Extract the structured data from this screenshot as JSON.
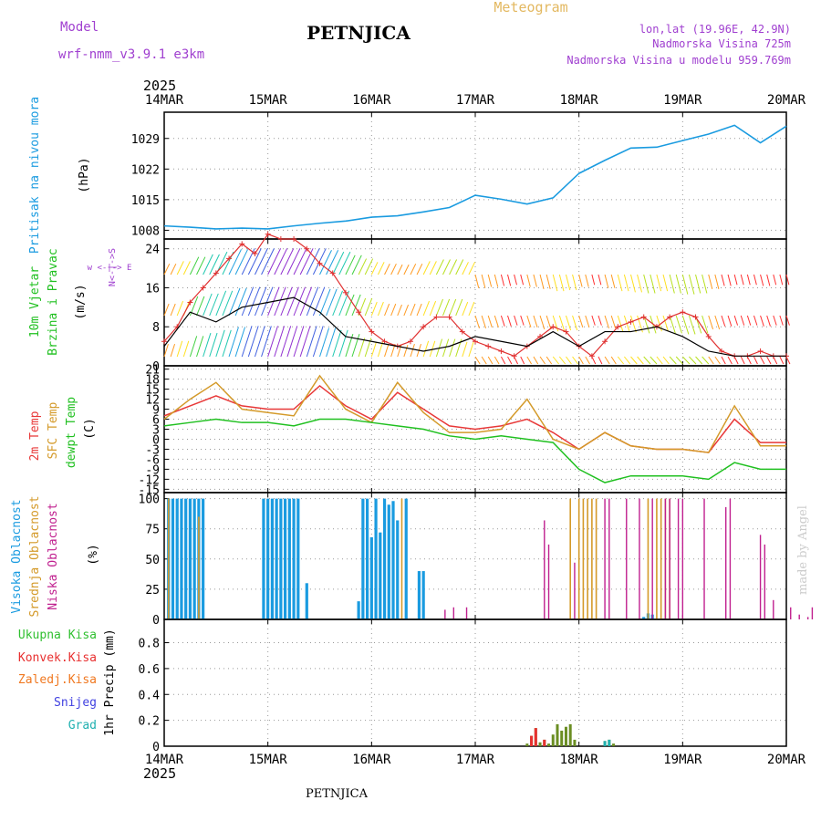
{
  "header": {
    "model_label": "Model",
    "model_name": "wrf-nmm_v3.9.1  e3km",
    "station": "PETNJICA",
    "meteogram": "Meteogram",
    "lonlat": "lon,lat (19.96E, 42.9N)",
    "elevation": "Nadmorska Visina 725m",
    "model_elevation": "Nadmorska Visina u modelu 959.769m",
    "footer_station": "PETNJICA",
    "credit": "made by Angel",
    "year": "2025"
  },
  "colors": {
    "pressure": "#1a9be0",
    "speed": "#e03030",
    "wind_black": "#000000",
    "temp2m": "#e83838",
    "sfc": "#d49a2a",
    "dewpt": "#20c020",
    "high": "#1a9be0",
    "mid": "#d49a2a",
    "low": "#c0208f",
    "total": "#30c030",
    "conv": "#e83030",
    "frz": "#f07820",
    "snow": "#4040e0",
    "grad": "#20b0b0",
    "purple": "#a040d0"
  },
  "chart_data": [
    {
      "type": "line",
      "title": "Pritisak na nivou mora",
      "ylabel": "(hPa)",
      "ylim": [
        1006,
        1035
      ],
      "yticks": [
        "1008",
        "1015",
        "1022",
        "1029"
      ],
      "x_hours": [
        0,
        6,
        12,
        18,
        24,
        30,
        36,
        42,
        48,
        54,
        60,
        66,
        72,
        78,
        84,
        90,
        96,
        102,
        108,
        114,
        120,
        126,
        132,
        138,
        144
      ],
      "values": [
        1009,
        1008.7,
        1008.3,
        1008.5,
        1008.3,
        1009,
        1009.6,
        1010.1,
        1011,
        1011.3,
        1012.2,
        1013.2,
        1016,
        1015.1,
        1014,
        1015.4,
        1021,
        1024,
        1026.8,
        1027,
        1028.5,
        1030,
        1032,
        1028,
        1031.8
      ]
    },
    {
      "type": "line",
      "title": "10m Vjetar Brzina i Pravac",
      "ylabel": "(m/s)",
      "ylim": [
        0,
        26
      ],
      "yticks": [
        "0",
        "8",
        "16",
        "24"
      ],
      "compass": "N<-|->S",
      "compass_wE": "w <-|-> E",
      "speed_hours": [
        0,
        3,
        6,
        9,
        12,
        15,
        18,
        21,
        24,
        27,
        30,
        33,
        36,
        39,
        42,
        45,
        48,
        51,
        54,
        57,
        60,
        63,
        66,
        69,
        72,
        75,
        78,
        81,
        84,
        87,
        90,
        93,
        96,
        99,
        102,
        105,
        108,
        111,
        114,
        117,
        120,
        123,
        126,
        129,
        132,
        135,
        138,
        141,
        144
      ],
      "speed_values": [
        5,
        8,
        13,
        16,
        19,
        22,
        25,
        23,
        27,
        26,
        26,
        24,
        21,
        19,
        15,
        11,
        7,
        5,
        4,
        5,
        8,
        10,
        10,
        7,
        5,
        4,
        3,
        2,
        4,
        6,
        8,
        7,
        4,
        2,
        5,
        8,
        9,
        10,
        8,
        10,
        11,
        10,
        6,
        3,
        2,
        2,
        3,
        2,
        2
      ],
      "mean_hours": [
        0,
        6,
        12,
        18,
        24,
        30,
        36,
        42,
        48,
        54,
        60,
        66,
        72,
        78,
        84,
        90,
        96,
        102,
        108,
        114,
        120,
        126,
        132,
        138,
        144
      ],
      "mean_values": [
        4,
        11,
        9,
        12,
        13,
        14,
        11,
        6,
        5,
        4,
        3,
        4,
        6,
        5,
        4,
        7,
        4,
        7,
        7,
        8,
        6,
        3,
        2,
        2,
        2
      ]
    },
    {
      "type": "line",
      "title": "2m Temp / SFC Temp / dewpt Temp",
      "ylabel": "(C)",
      "ylim": [
        -16,
        22
      ],
      "yticks": [
        "21",
        "18",
        "15",
        "12",
        "9",
        "6",
        "3",
        "0",
        "-3",
        "-6",
        "-9",
        "-12",
        "-15"
      ],
      "series": [
        {
          "name": "2m Temp",
          "x": [
            0,
            6,
            12,
            18,
            24,
            30,
            36,
            42,
            48,
            54,
            60,
            66,
            72,
            78,
            84,
            90,
            96,
            102,
            108,
            114,
            120,
            126,
            132,
            138,
            144
          ],
          "values": [
            7,
            10,
            13,
            10,
            9,
            9,
            16,
            10,
            6,
            14,
            9,
            4,
            3,
            4,
            6,
            2,
            -3,
            2,
            -2,
            -3,
            -3,
            -4,
            6,
            -1,
            -1
          ]
        },
        {
          "name": "SFC Temp",
          "x": [
            0,
            6,
            12,
            18,
            24,
            30,
            36,
            42,
            48,
            54,
            60,
            66,
            72,
            78,
            84,
            90,
            96,
            102,
            108,
            114,
            120,
            126,
            132,
            138,
            144
          ],
          "values": [
            6,
            12,
            17,
            9,
            8,
            7,
            19,
            9,
            5,
            17,
            8,
            2,
            2,
            3,
            12,
            0,
            -3,
            2,
            -2,
            -3,
            -3,
            -4,
            10,
            -2,
            -2
          ]
        },
        {
          "name": "dewpt Temp",
          "x": [
            0,
            6,
            12,
            18,
            24,
            30,
            36,
            42,
            48,
            54,
            60,
            66,
            72,
            78,
            84,
            90,
            96,
            102,
            108,
            114,
            120,
            126,
            132,
            138,
            144
          ],
          "values": [
            4,
            5,
            6,
            5,
            5,
            4,
            6,
            6,
            5,
            4,
            3,
            1,
            0,
            1,
            0,
            -1,
            -9,
            -13,
            -11,
            -11,
            -11,
            -12,
            -7,
            -9,
            -9
          ]
        }
      ]
    },
    {
      "type": "bar",
      "title": "Visoka / Srednja / Niska Oblacnost",
      "ylabel": "(%)",
      "ylim": [
        0,
        105
      ],
      "yticks": [
        "0",
        "25",
        "50",
        "75",
        "100"
      ],
      "series": [
        {
          "name": "Visoka Oblacnost",
          "x": [
            1,
            2,
            3,
            4,
            5,
            6,
            7,
            8,
            9,
            23,
            24,
            25,
            26,
            27,
            28,
            29,
            30,
            31,
            33,
            45,
            46,
            47,
            48,
            49,
            50,
            51,
            52,
            53,
            54,
            56,
            59,
            60,
            111,
            112,
            113
          ],
          "values": [
            100,
            100,
            100,
            100,
            100,
            100,
            100,
            100,
            100,
            100,
            100,
            100,
            100,
            100,
            100,
            100,
            100,
            100,
            30,
            15,
            100,
            100,
            68,
            100,
            72,
            100,
            95,
            98,
            82,
            100,
            40,
            40,
            2,
            5,
            4
          ]
        },
        {
          "name": "Srednja Oblacnost",
          "x": [
            1,
            8,
            55,
            94,
            96,
            97,
            98,
            99,
            100,
            112,
            114,
            115,
            116,
            117
          ],
          "values": [
            100,
            85,
            100,
            100,
            100,
            100,
            100,
            100,
            100,
            100,
            100,
            100,
            100,
            100
          ]
        },
        {
          "name": "Niska Oblacnost",
          "x": [
            65,
            67,
            70,
            88,
            89,
            95,
            102,
            103,
            107,
            110,
            113,
            116,
            117,
            119,
            120,
            125,
            130,
            131,
            138,
            139,
            141,
            145,
            147,
            149,
            150
          ],
          "values": [
            8,
            10,
            10,
            82,
            62,
            47,
            100,
            100,
            100,
            100,
            100,
            100,
            100,
            100,
            100,
            100,
            93,
            100,
            70,
            62,
            16,
            10,
            4,
            2,
            10
          ]
        }
      ]
    },
    {
      "type": "bar",
      "title": "1hr Precip",
      "ylabel": "1hr Precip (mm)",
      "ylim": [
        0,
        0.98
      ],
      "yticks": [
        "0",
        "0.2",
        "0.4",
        "0.6",
        "0.8"
      ],
      "legend": [
        "Ukupna Kisa",
        "Konvek.Kisa",
        "Zaledj.Kisa",
        "Snijeg",
        "Grad"
      ],
      "series": [
        {
          "name": "Ukupna Kisa",
          "x": [
            84,
            85,
            86,
            87,
            88,
            89,
            90,
            91,
            92,
            93,
            94,
            95,
            102,
            103,
            104
          ],
          "values": [
            0.02,
            0.08,
            0.14,
            0.03,
            0.05,
            0.02,
            0.09,
            0.17,
            0.12,
            0.15,
            0.17,
            0.05,
            0.04,
            0.05,
            0.02
          ]
        },
        {
          "name": "Konvek.Kisa",
          "x": [
            85,
            86,
            88
          ],
          "values": [
            0.08,
            0.14,
            0.05
          ]
        },
        {
          "name": "Grad",
          "x": [
            102,
            103
          ],
          "values": [
            0.04,
            0.05
          ]
        }
      ]
    }
  ],
  "axis": {
    "dates": [
      "14MAR",
      "15MAR",
      "16MAR",
      "17MAR",
      "18MAR",
      "19MAR",
      "20MAR"
    ]
  }
}
